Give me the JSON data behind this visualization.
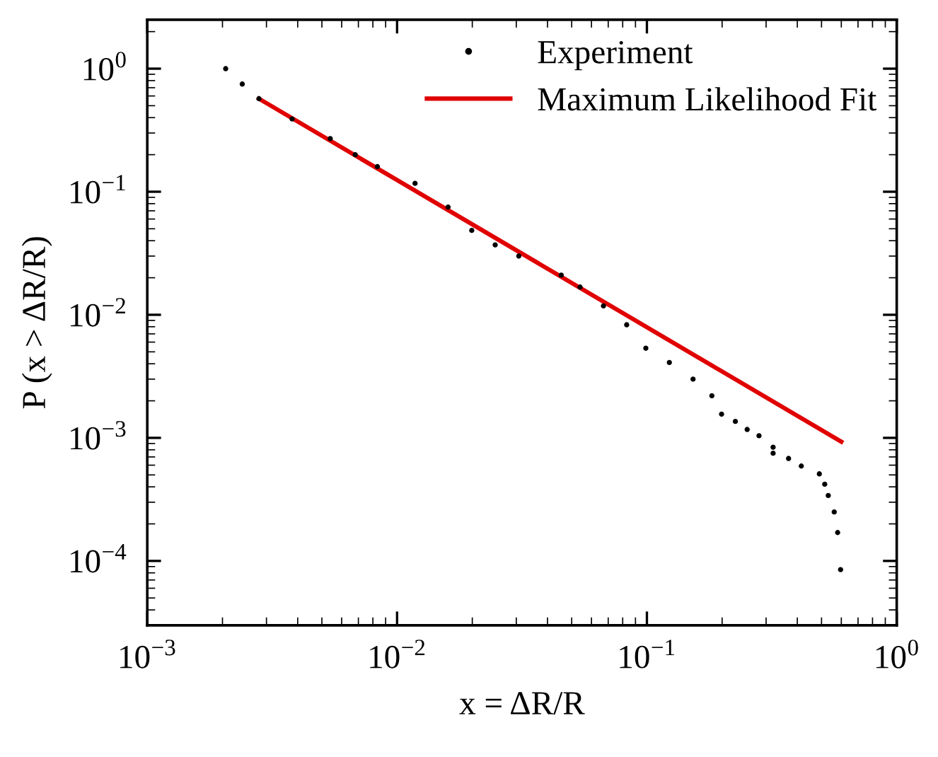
{
  "chart_data": {
    "type": "scatter",
    "xlabel": "x = ΔR/R",
    "ylabel": "P (x > ΔR/R)",
    "log": "xy",
    "xlim": [
      0.001,
      1
    ],
    "ylim": [
      3e-05,
      2.5
    ],
    "xticks": [
      {
        "value": 0.001,
        "label": "10$^{−3}$"
      },
      {
        "value": 0.01,
        "label": "10$^{−2}$"
      },
      {
        "value": 0.1,
        "label": "10$^{−1}$"
      },
      {
        "value": 1,
        "label": "10$^{0}$"
      }
    ],
    "yticks": [
      {
        "value": 0.0001,
        "label": "10$^{−4}$"
      },
      {
        "value": 0.001,
        "label": "10$^{−3}$"
      },
      {
        "value": 0.01,
        "label": "10$^{−2}$"
      },
      {
        "value": 0.1,
        "label": "10$^{−1}$"
      },
      {
        "value": 1,
        "label": "10$^{0}$"
      }
    ],
    "grid": false,
    "legend": "top right",
    "marker": "circle",
    "series": [
      {
        "name": "Experiment",
        "color": "#000000",
        "x": [
          0.00206,
          0.0024,
          0.0028,
          0.0038,
          0.0054,
          0.0068,
          0.00834,
          0.0118,
          0.016,
          0.0199,
          0.0247,
          0.0307,
          0.0454,
          0.054,
          0.067,
          0.083,
          0.099,
          0.123,
          0.153,
          0.182,
          0.199,
          0.226,
          0.252,
          0.281,
          0.32,
          0.32,
          0.369,
          0.415,
          0.49,
          0.515,
          0.532,
          0.562,
          0.58,
          0.596
        ],
        "values": [
          1.0,
          0.75,
          0.57,
          0.39,
          0.27,
          0.2,
          0.16,
          0.117,
          0.075,
          0.0485,
          0.037,
          0.03,
          0.021,
          0.0168,
          0.0118,
          0.0083,
          0.00535,
          0.0041,
          0.003,
          0.0022,
          0.00156,
          0.00136,
          0.00117,
          0.00104,
          0.00084,
          0.00075,
          0.00068,
          0.00059,
          0.00051,
          0.00042,
          0.00034,
          0.00025,
          0.00017,
          8.5e-05
        ]
      },
      {
        "name": "Maximum Likelihood Fit",
        "type": "line",
        "color": "#e00000",
        "marker": "none",
        "line_style": "solid",
        "x": [
          0.0028,
          0.6
        ],
        "values": [
          0.57,
          0.00093
        ]
      }
    ]
  }
}
